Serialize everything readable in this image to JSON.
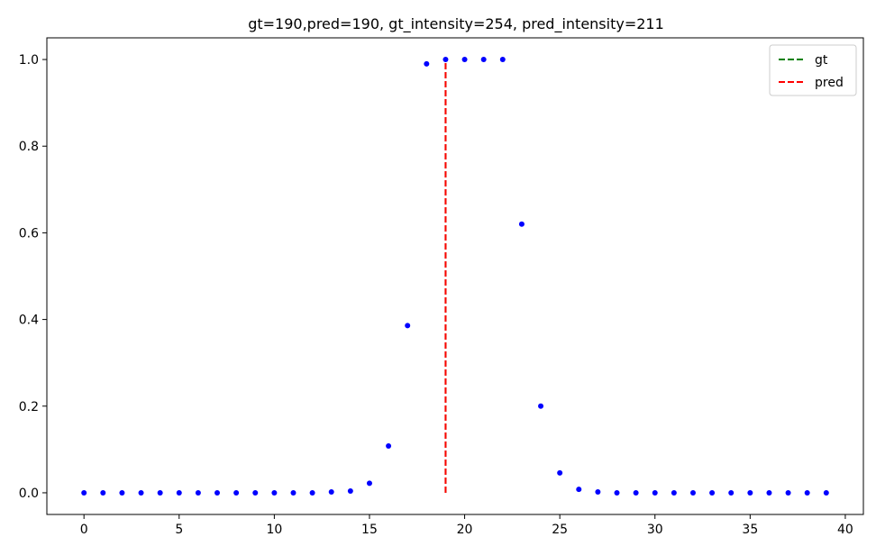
{
  "chart_data": {
    "type": "scatter",
    "title": "gt=190,pred=190, gt_intensity=254, pred_intensity=211",
    "xlabel": "",
    "ylabel": "",
    "xlim": [
      -1.95,
      40.95
    ],
    "ylim": [
      -0.05,
      1.05
    ],
    "x_ticks": [
      0,
      5,
      10,
      15,
      20,
      25,
      30,
      35,
      40
    ],
    "y_ticks": [
      0.0,
      0.2,
      0.4,
      0.6,
      0.8,
      1.0
    ],
    "x_tick_labels": [
      "0",
      "5",
      "10",
      "15",
      "20",
      "25",
      "30",
      "35",
      "40"
    ],
    "y_tick_labels": [
      "0.0",
      "0.2",
      "0.4",
      "0.6",
      "0.8",
      "1.0"
    ],
    "grid": false,
    "legend_position": "top-right",
    "points": {
      "color": "#0000ff",
      "x": [
        0,
        1,
        2,
        3,
        4,
        5,
        6,
        7,
        8,
        9,
        10,
        11,
        12,
        13,
        14,
        15,
        16,
        17,
        18,
        19,
        20,
        21,
        22,
        23,
        24,
        25,
        26,
        27,
        28,
        29,
        30,
        31,
        32,
        33,
        34,
        35,
        36,
        37,
        38,
        39
      ],
      "y": [
        0,
        0,
        0,
        0,
        0,
        0,
        0,
        0,
        0,
        0,
        0,
        0,
        0,
        0.002,
        0.004,
        0.022,
        0.108,
        0.386,
        0.99,
        1.0,
        1.0,
        1.0,
        1.0,
        0.62,
        0.2,
        0.046,
        0.008,
        0.002,
        0,
        0,
        0,
        0,
        0,
        0,
        0,
        0,
        0,
        0,
        0,
        0
      ]
    },
    "vlines": [
      {
        "name": "gt",
        "x": 19,
        "y0": 0,
        "y1": 1,
        "color": "#008000",
        "style": "dashed"
      },
      {
        "name": "pred",
        "x": 19,
        "y0": 0,
        "y1": 1,
        "color": "#ff0000",
        "style": "dashed"
      }
    ]
  }
}
